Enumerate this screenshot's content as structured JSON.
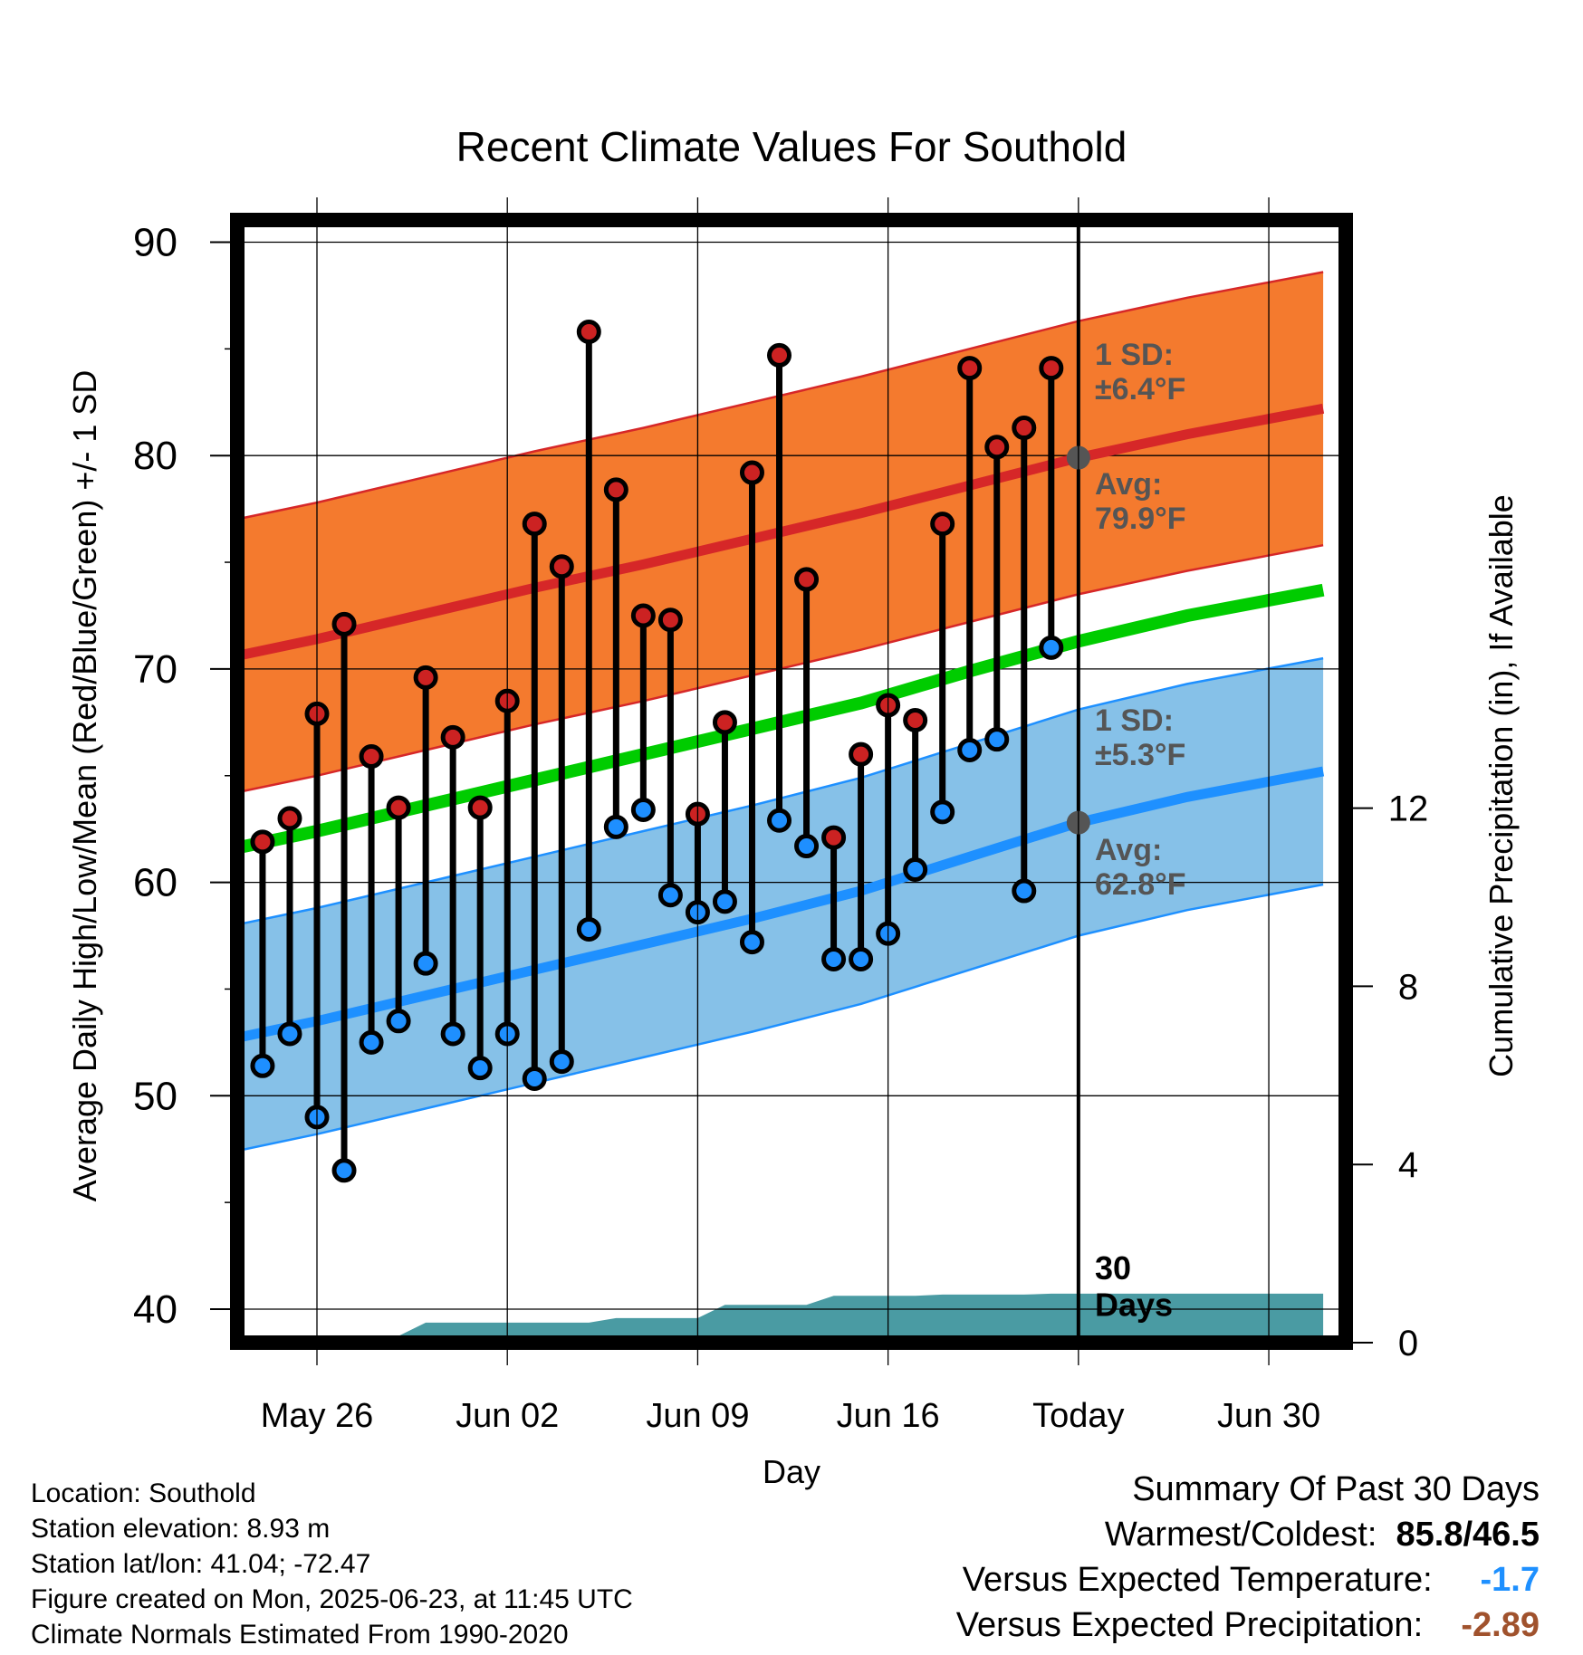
{
  "chart_data": {
    "type": "line",
    "title": "Recent Climate Values For Southold",
    "xlabel": "Day",
    "ylabel": "Average Daily High/Low/Mean (Red/Blue/Green) +/- 1 SD",
    "y2label": "Cumulative Precipitation (in), If Available",
    "ylim": [
      38.5,
      90.5
    ],
    "y_ticks": [
      40,
      50,
      60,
      70,
      80,
      90
    ],
    "y2_ticks": [
      0,
      4,
      8,
      12
    ],
    "y2lim": [
      0,
      24.5
    ],
    "xlim": [
      -3.3,
      37.3
    ],
    "x_ticks": [
      {
        "day": 0,
        "label": "May 26"
      },
      {
        "day": 7,
        "label": "Jun 02"
      },
      {
        "day": 14,
        "label": "Jun 09"
      },
      {
        "day": 21,
        "label": "Jun 16"
      },
      {
        "day": 28,
        "label": "Today"
      },
      {
        "day": 35,
        "label": "Jun 30"
      }
    ],
    "today_day": 28,
    "normals": {
      "x": [
        -3,
        0,
        4,
        8,
        12,
        16,
        20,
        24,
        28,
        32,
        37
      ],
      "high_mean": [
        70.6,
        71.4,
        72.6,
        73.8,
        74.9,
        76.1,
        77.3,
        78.6,
        79.9,
        81.0,
        82.2
      ],
      "high_sd": 6.4,
      "low_mean": [
        52.7,
        53.5,
        54.7,
        55.9,
        57.1,
        58.3,
        59.6,
        61.2,
        62.8,
        64.0,
        65.2
      ],
      "low_sd": 5.3,
      "mean": [
        61.6,
        62.4,
        63.6,
        64.8,
        66.0,
        67.2,
        68.4,
        69.9,
        71.3,
        72.5,
        73.7
      ]
    },
    "series": [
      {
        "name": "High",
        "x": [
          -2,
          -1,
          0,
          1,
          2,
          3,
          4,
          5,
          6,
          7,
          8,
          9,
          10,
          11,
          12,
          13,
          14,
          15,
          16,
          17,
          18,
          19,
          20,
          21,
          22,
          23,
          24,
          25,
          26,
          27
        ],
        "values": [
          61.9,
          63.0,
          67.9,
          72.1,
          65.9,
          63.5,
          69.6,
          66.8,
          63.5,
          68.5,
          76.8,
          74.8,
          85.8,
          78.4,
          72.5,
          72.3,
          63.2,
          67.5,
          79.2,
          84.7,
          74.2,
          62.1,
          66.0,
          68.3,
          67.6,
          76.8,
          84.1,
          80.4,
          81.3,
          84.1
        ]
      },
      {
        "name": "Low",
        "x": [
          -2,
          -1,
          0,
          1,
          2,
          3,
          4,
          5,
          6,
          7,
          8,
          9,
          10,
          11,
          12,
          13,
          14,
          15,
          16,
          17,
          18,
          19,
          20,
          21,
          22,
          23,
          24,
          25,
          26,
          27
        ],
        "values": [
          51.4,
          52.9,
          49.0,
          46.5,
          52.5,
          53.5,
          56.2,
          52.9,
          51.3,
          52.9,
          50.8,
          51.6,
          57.8,
          62.6,
          63.4,
          59.4,
          58.6,
          59.1,
          57.2,
          62.9,
          61.7,
          56.4,
          56.4,
          57.6,
          60.6,
          63.3,
          66.2,
          66.7,
          59.6,
          71.0
        ]
      }
    ],
    "precip": {
      "x": [
        -3,
        0,
        2,
        3,
        4,
        5,
        6,
        7,
        8,
        9,
        10,
        11,
        12,
        13,
        14,
        15,
        16,
        17,
        18,
        19,
        20,
        21,
        22,
        23,
        24,
        25,
        26,
        27,
        28,
        37
      ],
      "values": [
        0.0,
        0.0,
        0.15,
        0.15,
        0.45,
        0.45,
        0.45,
        0.45,
        0.45,
        0.45,
        0.45,
        0.55,
        0.55,
        0.55,
        0.55,
        0.85,
        0.85,
        0.85,
        0.85,
        1.05,
        1.05,
        1.05,
        1.05,
        1.08,
        1.08,
        1.08,
        1.08,
        1.1,
        1.1,
        1.1
      ]
    },
    "annotations": {
      "high_sd": "1 SD:\n±6.4°F",
      "high_avg": "Avg:\n79.9°F",
      "low_sd": "1 SD:\n±5.3°F",
      "low_avg": "Avg:\n62.8°F",
      "window": "30\nDays"
    },
    "colors": {
      "high_band": "#f47a2e",
      "high_mean_line": "#d62728",
      "low_band": "#86c1e8",
      "low_mean_line": "#1e90ff",
      "mean_line": "#00cc00",
      "high_marker": "#cc2222",
      "low_marker": "#1e8fff",
      "precip_fill": "#4a9ba3",
      "annotation_text": "#555555"
    },
    "grid": true
  },
  "info": {
    "location": "Location: Southold",
    "elevation": "Station elevation: 8.93 m",
    "latlon": "Station lat/lon: 41.04; -72.47",
    "created": "Figure created on Mon, 2025-06-23, at 11:45 UTC",
    "normals": "Climate Normals Estimated From 1990-2020"
  },
  "summary": {
    "heading": "Summary Of Past 30 Days",
    "warmest_label": "Warmest/Coldest:",
    "warmest_value": "85.8/46.5",
    "temp_label": "Versus Expected Temperature:",
    "temp_value": "-1.7",
    "temp_color": "#1e90ff",
    "precip_label": "Versus Expected Precipitation:",
    "precip_value": "-2.89",
    "precip_color": "#a0522d"
  }
}
